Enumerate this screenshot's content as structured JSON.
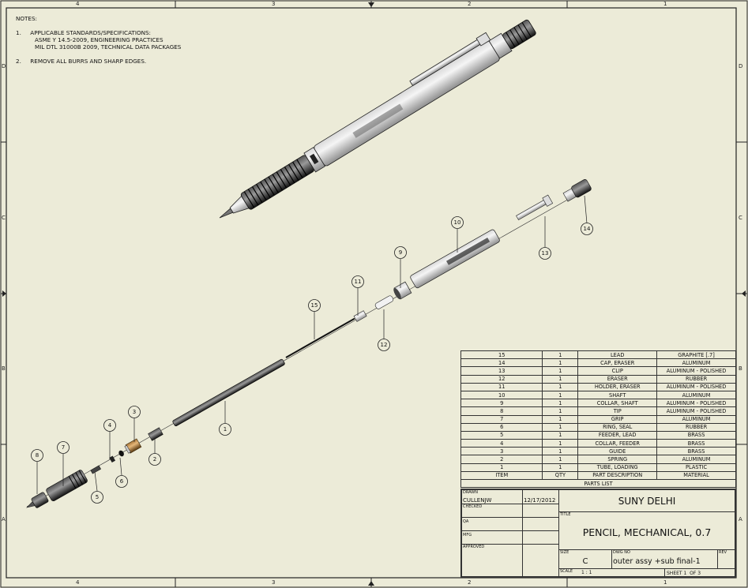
{
  "zones": {
    "top": [
      "4",
      "3",
      "2",
      "1"
    ],
    "bottom": [
      "4",
      "3",
      "2",
      "1"
    ],
    "left": [
      "D",
      "C",
      "B",
      "A"
    ],
    "right": [
      "D",
      "C",
      "B",
      "A"
    ]
  },
  "notes": {
    "heading": "NOTES:",
    "items": [
      {
        "num": "1.",
        "text": "APPLICABLE STANDARDS/SPECIFICATIONS:"
      },
      {
        "num": "",
        "text": "ASME Y 14.5-2009, ENGINEERING PRACTICES"
      },
      {
        "num": "",
        "text": "MIL DTL 31000B 2009, TECHNICAL DATA PACKAGES"
      },
      {
        "num": "2.",
        "text": "REMOVE ALL BURRS AND SHARP EDGES."
      }
    ]
  },
  "balloons": [
    "1",
    "2",
    "3",
    "4",
    "5",
    "6",
    "7",
    "8",
    "9",
    "10",
    "11",
    "12",
    "13",
    "14",
    "15"
  ],
  "parts_list": {
    "caption": "PARTS LIST",
    "headers": [
      "ITEM",
      "QTY",
      "PART DESCRIPTION",
      "MATERIAL"
    ],
    "rows": [
      [
        "15",
        "1",
        "LEAD",
        "GRAPHITE [.7]"
      ],
      [
        "14",
        "1",
        "CAP, ERASER",
        "ALUMINUM"
      ],
      [
        "13",
        "1",
        "CLIP",
        "ALUMINUM - POLISHED"
      ],
      [
        "12",
        "1",
        "ERASER",
        "RUBBER"
      ],
      [
        "11",
        "1",
        "HOLDER, ERASER",
        "ALUMINUM - POLISHED"
      ],
      [
        "10",
        "1",
        "SHAFT",
        "ALUMINUM"
      ],
      [
        "9",
        "1",
        "COLLAR, SHAFT",
        "ALUMINUM - POLISHED"
      ],
      [
        "8",
        "1",
        "TIP",
        "ALUMINUM - POLISHED"
      ],
      [
        "7",
        "1",
        "GRIP",
        "ALUMINUM"
      ],
      [
        "6",
        "1",
        "RING, SEAL",
        "RUBBER"
      ],
      [
        "5",
        "1",
        "FEEDER, LEAD",
        "BRASS"
      ],
      [
        "4",
        "1",
        "COLLAR, FEEDER",
        "BRASS"
      ],
      [
        "3",
        "1",
        "GUIDE",
        "BRASS"
      ],
      [
        "2",
        "1",
        "SPRING",
        "ALUMINUM"
      ],
      [
        "1",
        "1",
        "TUBE, LOADING",
        "PLASTIC"
      ]
    ]
  },
  "title_block": {
    "drawn_label": "DRAWN",
    "drawn_by": "CULLENJW",
    "drawn_date": "12/17/2012",
    "checked_label": "CHECKED",
    "qa_label": "QA",
    "mfg_label": "MFG",
    "approved_label": "APPROVED",
    "company": "SUNY DELHI",
    "title_label": "TITLE",
    "title": "PENCIL, MECHANICAL, 0.7",
    "size_label": "SIZE",
    "size": "C",
    "dwg_label": "DWG NO",
    "dwg_no": "outer assy +sub final-1",
    "rev_label": "REV",
    "scale_label": "SCALE",
    "scale": "1 : 1",
    "sheet": "SHEET 1  OF 3"
  }
}
